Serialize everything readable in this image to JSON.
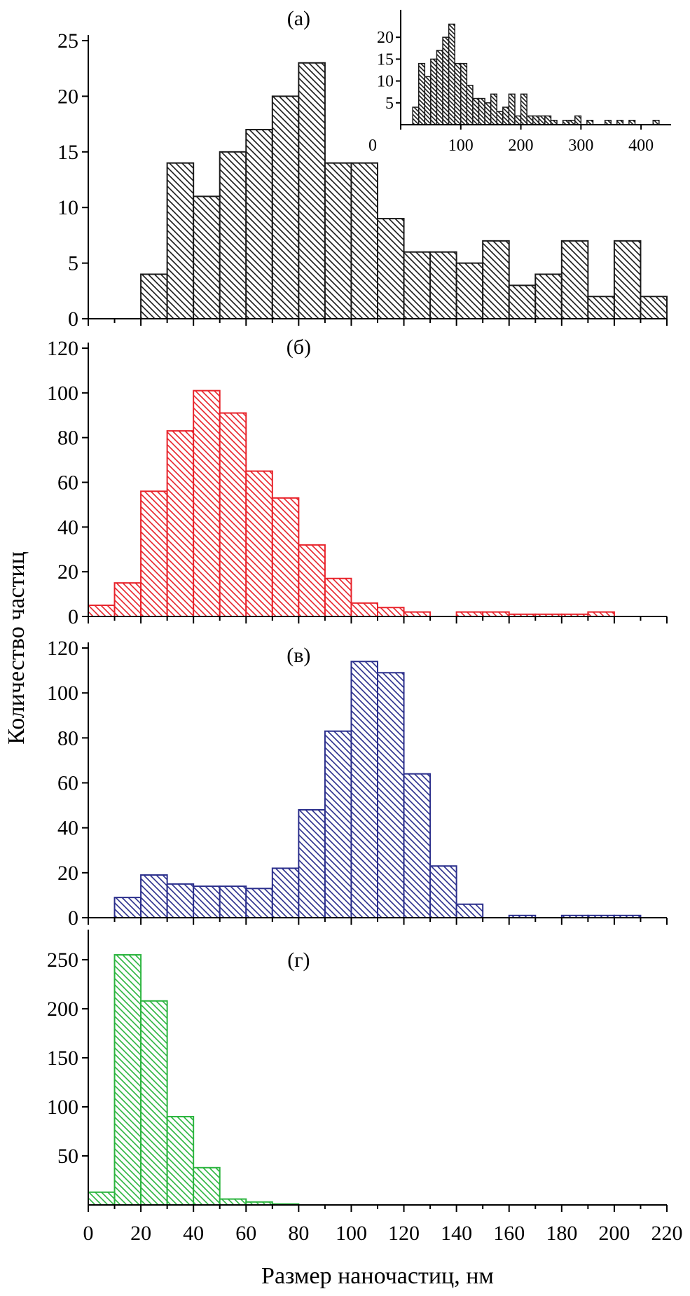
{
  "chart_data": {
    "type": "bar",
    "xlabel": "Размер наночастиц, нм",
    "ylabel": "Количество частиц",
    "xlim": [
      0,
      220
    ],
    "x_ticks": [
      0,
      20,
      40,
      60,
      80,
      100,
      120,
      140,
      160,
      180,
      200,
      220
    ],
    "bin_width": 10,
    "panels": [
      {
        "label": "(а)",
        "color": "#1a1a1a",
        "ylim": [
          0,
          25
        ],
        "y_ticks": [
          0,
          5,
          10,
          15,
          20,
          25
        ],
        "bin_starts": [
          20,
          30,
          40,
          50,
          60,
          70,
          80,
          90,
          100,
          110,
          120,
          130,
          140,
          150,
          160,
          170,
          180,
          190,
          200,
          210
        ],
        "values": [
          4,
          14,
          11,
          15,
          17,
          20,
          23,
          14,
          14,
          9,
          6,
          6,
          5,
          7,
          3,
          4,
          7,
          2,
          7,
          2
        ]
      },
      {
        "label": "(б)",
        "color": "#e8232b",
        "ylim": [
          0,
          120
        ],
        "y_ticks": [
          0,
          20,
          40,
          60,
          80,
          100,
          120
        ],
        "bin_starts": [
          0,
          10,
          20,
          30,
          40,
          50,
          60,
          70,
          80,
          90,
          100,
          110,
          120,
          140,
          150,
          160,
          170,
          180,
          190
        ],
        "values": [
          5,
          15,
          56,
          83,
          101,
          91,
          65,
          53,
          32,
          17,
          6,
          4,
          2,
          2,
          2,
          1,
          1,
          1,
          2
        ]
      },
      {
        "label": "(в)",
        "color": "#2b2f8c",
        "ylim": [
          0,
          120
        ],
        "y_ticks": [
          0,
          20,
          40,
          60,
          80,
          100,
          120
        ],
        "bin_starts": [
          10,
          20,
          30,
          40,
          50,
          60,
          70,
          80,
          90,
          100,
          110,
          120,
          130,
          140,
          160,
          180,
          190,
          200
        ],
        "values": [
          9,
          19,
          15,
          14,
          14,
          13,
          22,
          48,
          83,
          114,
          109,
          64,
          23,
          6,
          1,
          1,
          1,
          1
        ]
      },
      {
        "label": "(г)",
        "color": "#2cb53f",
        "ylim": [
          0,
          275
        ],
        "y_ticks": [
          50,
          100,
          150,
          200,
          250
        ],
        "bin_starts": [
          0,
          10,
          20,
          30,
          40,
          50,
          60,
          70
        ],
        "values": [
          13,
          255,
          208,
          90,
          38,
          6,
          3,
          1
        ]
      }
    ],
    "inset": {
      "panel": "(а)",
      "color": "#1a1a1a",
      "xlim": [
        0,
        450
      ],
      "ylim": [
        0,
        25
      ],
      "x_ticks": [
        0,
        100,
        200,
        300,
        400
      ],
      "y_ticks": [
        5,
        10,
        15,
        20
      ],
      "bin_width": 10,
      "bin_starts": [
        20,
        30,
        40,
        50,
        60,
        70,
        80,
        90,
        100,
        110,
        120,
        130,
        140,
        150,
        160,
        170,
        180,
        190,
        200,
        210,
        220,
        230,
        240,
        250,
        270,
        280,
        290,
        310,
        340,
        360,
        380,
        420
      ],
      "values": [
        4,
        14,
        11,
        15,
        17,
        20,
        23,
        14,
        14,
        9,
        6,
        6,
        5,
        7,
        3,
        4,
        7,
        2,
        7,
        2,
        2,
        2,
        2,
        1,
        1,
        1,
        2,
        1,
        1,
        1,
        1,
        1
      ]
    }
  }
}
